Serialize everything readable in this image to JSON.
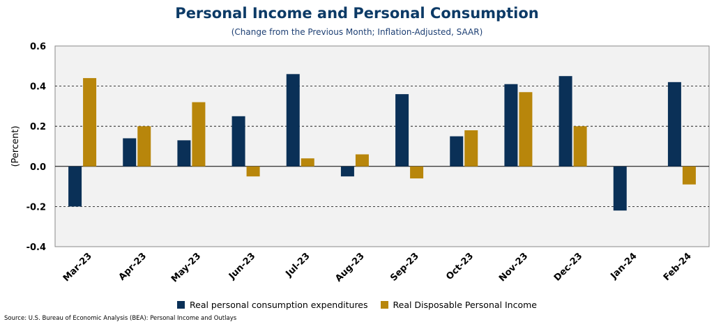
{
  "chart_data": {
    "type": "bar",
    "title": "Personal Income and Personal Consumption",
    "subtitle": "(Change from the Previous Month; Inflation-Adjusted, SAAR)",
    "ylabel": "(Percent)",
    "ylim": [
      -0.4,
      0.6
    ],
    "yticks": [
      0.6,
      0.4,
      0.2,
      0.0,
      -0.2,
      -0.4
    ],
    "ytick_labels": [
      "0.6",
      "0.4",
      "0.2",
      "0.0",
      "-0.2",
      "-0.4"
    ],
    "categories": [
      "Mar-23",
      "Apr-23",
      "May-23",
      "Jun-23",
      "Jul-23",
      "Aug-23",
      "Sep-23",
      "Oct-23",
      "Nov-23",
      "Dec-23",
      "Jan-24",
      "Feb-24"
    ],
    "series": [
      {
        "name": "Real personal consumption expenditures",
        "color": "#0a3057",
        "values": [
          -0.2,
          0.14,
          0.13,
          0.25,
          0.46,
          -0.05,
          0.36,
          0.15,
          0.41,
          0.45,
          -0.22,
          0.42
        ]
      },
      {
        "name": "Real Disposable Personal Income",
        "color": "#b8860b",
        "values": [
          0.44,
          0.2,
          0.32,
          -0.05,
          0.04,
          0.06,
          -0.06,
          0.18,
          0.37,
          0.2,
          0.0,
          -0.09
        ]
      }
    ],
    "grid": "dashed horizontal",
    "legend": "bottom-center",
    "source": "Source: U.S. Bureau of Economic Analysis (BEA): Personal Income and Outlays"
  }
}
